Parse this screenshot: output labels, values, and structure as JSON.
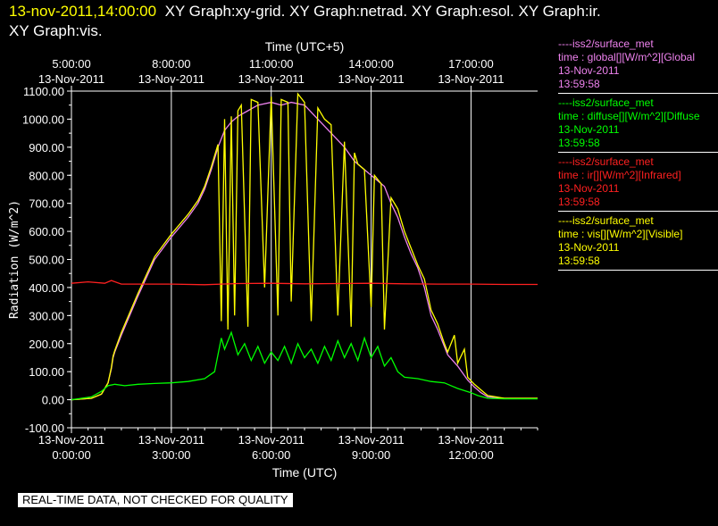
{
  "header": {
    "timestamp": "13-nov-2011,14:00:00",
    "titles_line1": "XY Graph:xy-grid.  XY Graph:netrad.  XY Graph:esol.  XY Graph:ir.",
    "titles_line2": "XY Graph:vis."
  },
  "legend": [
    {
      "source": "----iss2/surface_met",
      "variable": "time : global[][W/m^2][Global",
      "date": "13-Nov-2011",
      "time": "13:59:58",
      "color": "#ee82ee"
    },
    {
      "source": "----iss2/surface_met",
      "variable": "time : diffuse[][W/m^2][Diffuse",
      "date": "13-Nov-2011",
      "time": "13:59:58",
      "color": "#00ff00"
    },
    {
      "source": "----iss2/surface_met",
      "variable": "time : ir[][W/m^2][Infrared]",
      "date": "13-Nov-2011",
      "time": "13:59:58",
      "color": "#ff2020"
    },
    {
      "source": "----iss2/surface_met",
      "variable": "time : vis[][W/m^2][Visible]",
      "date": "13-Nov-2011",
      "time": "13:59:58",
      "color": "#ffff00"
    }
  ],
  "qc_banner": "REAL-TIME DATA, NOT CHECKED FOR QUALITY",
  "chart_data": {
    "type": "line",
    "xlabel": "Time (UTC)",
    "x2label": "Time (UTC+5)",
    "ylabel": "Radiation (W/m^2)",
    "ylim": [
      -100,
      1100
    ],
    "xlim_hours": [
      0,
      14
    ],
    "grid": "vertical",
    "y_ticks": [
      "-100.00",
      "0.00",
      "100.00",
      "200.00",
      "300.00",
      "400.00",
      "500.00",
      "600.00",
      "700.00",
      "800.00",
      "900.00",
      "1000.00",
      "1100.00"
    ],
    "x_ticks": [
      {
        "hour": 0,
        "date": "13-Nov-2011",
        "time": "0:00:00"
      },
      {
        "hour": 3,
        "date": "13-Nov-2011",
        "time": "3:00:00"
      },
      {
        "hour": 6,
        "date": "13-Nov-2011",
        "time": "6:00:00"
      },
      {
        "hour": 9,
        "date": "13-Nov-2011",
        "time": "9:00:00"
      },
      {
        "hour": 12,
        "date": "13-Nov-2011",
        "time": "12:00:00"
      }
    ],
    "x2_ticks": [
      {
        "hour": 0,
        "time": "5:00:00",
        "date": "13-Nov-2011"
      },
      {
        "hour": 3,
        "time": "8:00:00",
        "date": "13-Nov-2011"
      },
      {
        "hour": 6,
        "time": "11:00:00",
        "date": "13-Nov-2011"
      },
      {
        "hour": 9,
        "time": "14:00:00",
        "date": "13-Nov-2011"
      },
      {
        "hour": 12,
        "time": "17:00:00",
        "date": "13-Nov-2011"
      }
    ],
    "series": [
      {
        "name": "global",
        "color": "#ee82ee",
        "x": [
          0,
          0.6,
          0.9,
          1.1,
          1.2,
          1.25,
          1.3,
          1.5,
          2.0,
          2.5,
          3.0,
          3.5,
          3.8,
          4.0,
          4.2,
          4.4,
          4.6,
          4.8,
          5.0,
          5.3,
          5.6,
          6.0,
          6.3,
          6.6,
          7.0,
          7.4,
          7.8,
          8.2,
          8.5,
          8.8,
          9.1,
          9.4,
          9.6,
          9.8,
          10.0,
          10.2,
          10.4,
          10.6,
          10.8,
          11.0,
          11.3,
          11.6,
          11.9,
          12.1,
          12.3,
          12.5,
          13.0,
          14.0
        ],
        "y": [
          0,
          5,
          20,
          60,
          110,
          150,
          170,
          230,
          370,
          500,
          580,
          650,
          700,
          750,
          820,
          900,
          960,
          990,
          1010,
          1030,
          1050,
          1060,
          1050,
          1060,
          1050,
          1000,
          950,
          900,
          850,
          820,
          790,
          760,
          700,
          650,
          580,
          520,
          470,
          400,
          300,
          250,
          160,
          120,
          70,
          45,
          25,
          10,
          5,
          5
        ]
      },
      {
        "name": "vis",
        "color": "#ffff00",
        "x": [
          0,
          0.6,
          0.9,
          1.1,
          1.2,
          1.25,
          1.3,
          1.5,
          2.0,
          2.5,
          3.0,
          3.5,
          3.8,
          4.0,
          4.2,
          4.4,
          4.5,
          4.6,
          4.7,
          4.8,
          4.9,
          5.0,
          5.1,
          5.3,
          5.4,
          5.6,
          5.8,
          6.0,
          6.2,
          6.3,
          6.5,
          6.6,
          6.8,
          7.0,
          7.2,
          7.4,
          7.6,
          7.8,
          8.0,
          8.2,
          8.4,
          8.5,
          8.6,
          8.8,
          9.0,
          9.1,
          9.3,
          9.4,
          9.6,
          9.8,
          10.0,
          10.2,
          10.4,
          10.6,
          10.8,
          11.0,
          11.2,
          11.3,
          11.5,
          11.6,
          11.8,
          11.9,
          12.1,
          12.3,
          12.5,
          13.0,
          14.0
        ],
        "y": [
          0,
          5,
          20,
          60,
          115,
          155,
          175,
          240,
          380,
          510,
          590,
          660,
          710,
          760,
          830,
          910,
          280,
          1000,
          250,
          1010,
          300,
          1030,
          1050,
          260,
          1070,
          1060,
          400,
          1080,
          300,
          1070,
          1060,
          350,
          1090,
          1060,
          280,
          1040,
          1000,
          980,
          300,
          920,
          260,
          880,
          840,
          820,
          330,
          800,
          770,
          250,
          720,
          680,
          600,
          540,
          480,
          430,
          320,
          270,
          200,
          170,
          230,
          130,
          180,
          80,
          55,
          35,
          15,
          5,
          5
        ]
      },
      {
        "name": "ir",
        "color": "#ff2020",
        "x": [
          0,
          0.5,
          1.0,
          1.2,
          1.5,
          2.0,
          3.0,
          4.0,
          5.0,
          6.0,
          7.0,
          8.0,
          9.0,
          10.0,
          11.0,
          12.0,
          13.0,
          14.0
        ],
        "y": [
          415,
          420,
          415,
          425,
          412,
          412,
          412,
          410,
          414,
          415,
          413,
          414,
          415,
          413,
          412,
          412,
          411,
          411
        ]
      },
      {
        "name": "diffuse",
        "color": "#00ff00",
        "x": [
          0,
          0.6,
          0.9,
          1.1,
          1.3,
          1.6,
          2.0,
          2.5,
          3.0,
          3.5,
          4.0,
          4.3,
          4.5,
          4.6,
          4.8,
          5.0,
          5.2,
          5.4,
          5.6,
          5.8,
          6.0,
          6.2,
          6.4,
          6.6,
          6.8,
          7.0,
          7.2,
          7.4,
          7.6,
          7.8,
          8.0,
          8.2,
          8.4,
          8.6,
          8.8,
          9.0,
          9.2,
          9.4,
          9.6,
          9.8,
          10.0,
          10.4,
          10.8,
          11.2,
          11.6,
          12.0,
          12.2,
          12.5,
          13.0,
          14.0
        ],
        "y": [
          0,
          10,
          30,
          50,
          55,
          50,
          55,
          58,
          60,
          65,
          75,
          100,
          220,
          180,
          240,
          160,
          200,
          140,
          190,
          130,
          170,
          140,
          190,
          130,
          200,
          150,
          180,
          130,
          190,
          140,
          210,
          150,
          200,
          140,
          220,
          150,
          190,
          120,
          150,
          100,
          80,
          75,
          65,
          60,
          40,
          25,
          15,
          5,
          3,
          3
        ]
      }
    ]
  }
}
